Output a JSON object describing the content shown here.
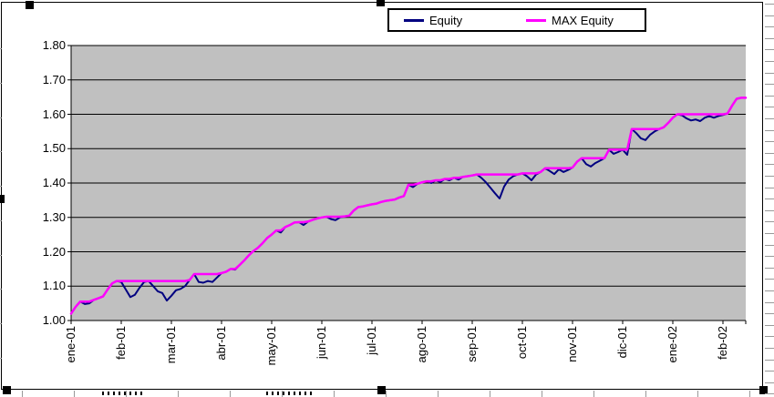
{
  "legend": {
    "items": [
      {
        "label": "Equity",
        "color": "#000080"
      },
      {
        "label": "MAX Equity",
        "color": "#FF00FF"
      }
    ]
  },
  "chart_data": {
    "type": "line",
    "title": "",
    "xlabel": "",
    "ylabel": "",
    "ylim": [
      1.0,
      1.8
    ],
    "y_tick_step": 0.1,
    "grid": true,
    "plot_bg_color": "#C0C0C0",
    "gridline_color": "#000000",
    "legend_position": "top-center",
    "y_tick_labels": [
      "1.00",
      "1.10",
      "1.20",
      "1.30",
      "1.40",
      "1.50",
      "1.60",
      "1.70",
      "1.80"
    ],
    "x_tick_labels": [
      "ene-01",
      "feb-01",
      "mar-01",
      "abr-01",
      "may-01",
      "jun-01",
      "jul-01",
      "ago-01",
      "sep-01",
      "oct-01",
      "nov-01",
      "dic-01",
      "ene-02",
      "feb-02"
    ],
    "points_per_month": 11,
    "series": [
      {
        "name": "Equity",
        "color": "#000080",
        "values": [
          1.02,
          1.04,
          1.055,
          1.048,
          1.05,
          1.06,
          1.065,
          1.07,
          1.09,
          1.108,
          1.115,
          1.112,
          1.09,
          1.068,
          1.075,
          1.095,
          1.112,
          1.115,
          1.1,
          1.085,
          1.08,
          1.058,
          1.072,
          1.088,
          1.092,
          1.1,
          1.118,
          1.135,
          1.112,
          1.11,
          1.115,
          1.112,
          1.125,
          1.138,
          1.142,
          1.15,
          1.148,
          1.162,
          1.175,
          1.19,
          1.202,
          1.212,
          1.225,
          1.24,
          1.25,
          1.262,
          1.256,
          1.272,
          1.278,
          1.285,
          1.286,
          1.278,
          1.288,
          1.293,
          1.297,
          1.3,
          1.302,
          1.295,
          1.292,
          1.3,
          1.303,
          1.305,
          1.32,
          1.33,
          1.332,
          1.335,
          1.338,
          1.34,
          1.345,
          1.348,
          1.35,
          1.352,
          1.358,
          1.362,
          1.395,
          1.388,
          1.398,
          1.402,
          1.405,
          1.4,
          1.408,
          1.403,
          1.412,
          1.408,
          1.415,
          1.41,
          1.418,
          1.42,
          1.422,
          1.425,
          1.415,
          1.402,
          1.386,
          1.37,
          1.355,
          1.39,
          1.41,
          1.42,
          1.425,
          1.428,
          1.42,
          1.408,
          1.425,
          1.432,
          1.443,
          1.435,
          1.426,
          1.44,
          1.432,
          1.438,
          1.445,
          1.462,
          1.472,
          1.455,
          1.448,
          1.458,
          1.465,
          1.472,
          1.497,
          1.485,
          1.49,
          1.497,
          1.482,
          1.557,
          1.545,
          1.53,
          1.525,
          1.54,
          1.55,
          1.557,
          1.562,
          1.575,
          1.59,
          1.6,
          1.597,
          1.588,
          1.582,
          1.585,
          1.58,
          1.59,
          1.595,
          1.59,
          1.595,
          1.598,
          1.602,
          1.625,
          1.645,
          1.648,
          1.648
        ]
      },
      {
        "name": "MAX Equity",
        "color": "#FF00FF",
        "derivation": "running maximum of Equity",
        "values": [
          1.02,
          1.04,
          1.055,
          1.055,
          1.055,
          1.06,
          1.065,
          1.07,
          1.09,
          1.108,
          1.115,
          1.115,
          1.115,
          1.115,
          1.115,
          1.115,
          1.115,
          1.115,
          1.115,
          1.115,
          1.115,
          1.115,
          1.115,
          1.115,
          1.115,
          1.115,
          1.118,
          1.135,
          1.135,
          1.135,
          1.135,
          1.135,
          1.135,
          1.138,
          1.142,
          1.15,
          1.15,
          1.162,
          1.175,
          1.19,
          1.202,
          1.212,
          1.225,
          1.24,
          1.25,
          1.262,
          1.262,
          1.272,
          1.278,
          1.285,
          1.286,
          1.286,
          1.288,
          1.293,
          1.297,
          1.3,
          1.302,
          1.302,
          1.302,
          1.302,
          1.303,
          1.305,
          1.32,
          1.33,
          1.332,
          1.335,
          1.338,
          1.34,
          1.345,
          1.348,
          1.35,
          1.352,
          1.358,
          1.362,
          1.395,
          1.395,
          1.398,
          1.402,
          1.405,
          1.405,
          1.408,
          1.408,
          1.412,
          1.412,
          1.415,
          1.415,
          1.418,
          1.42,
          1.422,
          1.425,
          1.425,
          1.425,
          1.425,
          1.425,
          1.425,
          1.425,
          1.425,
          1.425,
          1.425,
          1.428,
          1.428,
          1.428,
          1.428,
          1.432,
          1.443,
          1.443,
          1.443,
          1.443,
          1.443,
          1.443,
          1.445,
          1.462,
          1.472,
          1.472,
          1.472,
          1.472,
          1.472,
          1.472,
          1.497,
          1.497,
          1.497,
          1.497,
          1.497,
          1.557,
          1.557,
          1.557,
          1.557,
          1.557,
          1.557,
          1.557,
          1.562,
          1.575,
          1.59,
          1.6,
          1.6,
          1.6,
          1.6,
          1.6,
          1.6,
          1.6,
          1.6,
          1.6,
          1.6,
          1.6,
          1.602,
          1.625,
          1.645,
          1.648,
          1.648
        ]
      }
    ]
  },
  "selection": {
    "handle_color": "#000000"
  }
}
